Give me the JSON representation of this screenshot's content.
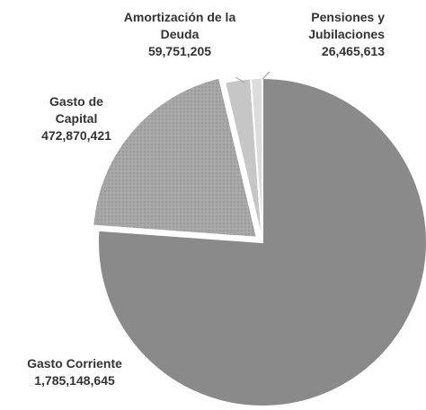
{
  "chart_data": {
    "type": "pie",
    "categories": [
      "Gasto Corriente",
      "Gasto de Capital",
      "Amortización de la Deuda",
      "Pensiones y Jubilaciones"
    ],
    "values": [
      1785148645,
      472870421,
      59751205,
      26465613
    ],
    "value_labels": [
      "1,785,148,645",
      "472,870,421",
      "59,751,205",
      "26,465,613"
    ],
    "colors": [
      "#8a8a8a",
      "#a8a8a8",
      "#c6c6c6",
      "#dcdcdc"
    ]
  }
}
